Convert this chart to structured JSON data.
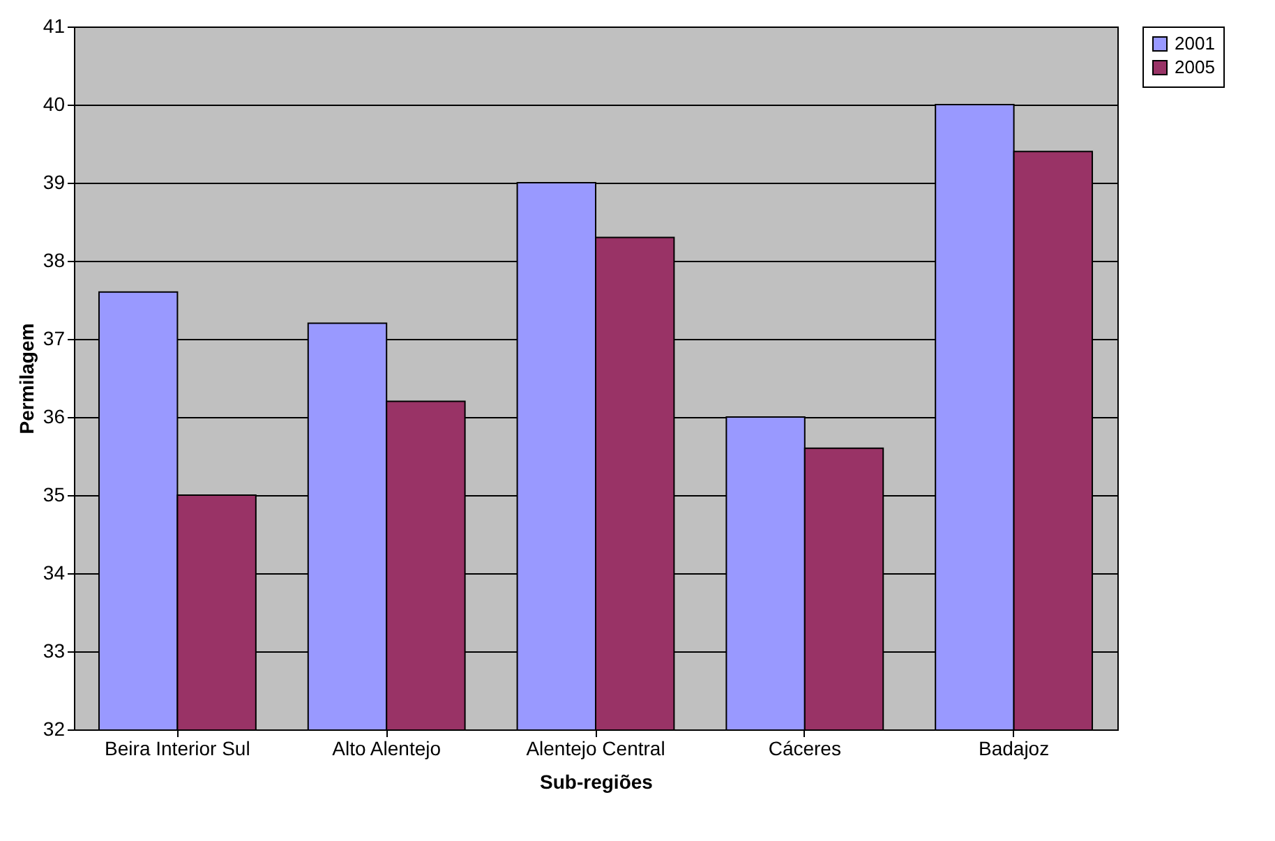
{
  "chart_data": {
    "type": "bar",
    "xlabel": "Sub-regiões",
    "ylabel": "Permilagem",
    "categories": [
      "Beira Interior Sul",
      "Alto Alentejo",
      "Alentejo Central",
      "Cáceres",
      "Badajoz"
    ],
    "series": [
      {
        "name": "2001",
        "color": "#9999ff",
        "values": [
          37.6,
          37.2,
          39.0,
          36.0,
          40.0
        ]
      },
      {
        "name": "2005",
        "color": "#993366",
        "values": [
          35.0,
          36.2,
          38.3,
          35.6,
          39.4
        ]
      }
    ],
    "ylim": [
      32,
      41
    ],
    "yticks": [
      32,
      33,
      34,
      35,
      36,
      37,
      38,
      39,
      40,
      41
    ],
    "grid": "y",
    "legend": "right"
  }
}
